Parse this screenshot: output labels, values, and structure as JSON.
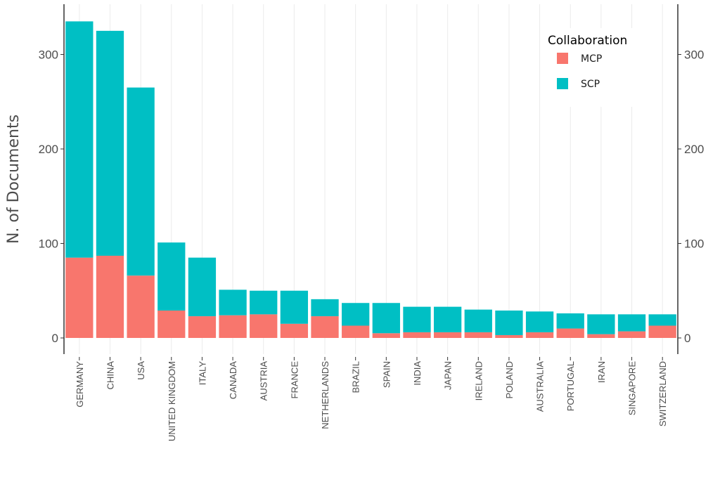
{
  "chart_data": {
    "type": "bar",
    "stacked": true,
    "title": "",
    "xlabel": "",
    "ylabel": "N. of Documents",
    "ylim": [
      0,
      350
    ],
    "yticks": [
      0,
      100,
      200,
      300
    ],
    "categories": [
      "GERMANY",
      "CHINA",
      "USA",
      "UNITED KINGDOM",
      "ITALY",
      "CANADA",
      "AUSTRIA",
      "FRANCE",
      "NETHERLANDS",
      "BRAZIL",
      "SPAIN",
      "INDIA",
      "JAPAN",
      "IRELAND",
      "POLAND",
      "AUSTRALIA",
      "PORTUGAL",
      "IRAN",
      "SINGAPORE",
      "SWITZERLAND"
    ],
    "series": [
      {
        "name": "MCP",
        "color": "#F8766D",
        "values": [
          85,
          87,
          66,
          29,
          23,
          24,
          25,
          15,
          23,
          13,
          5,
          6,
          6,
          6,
          3,
          6,
          10,
          4,
          7,
          13
        ]
      },
      {
        "name": "SCP",
        "color": "#00BFC4",
        "values": [
          250,
          238,
          199,
          72,
          62,
          27,
          25,
          35,
          18,
          24,
          32,
          27,
          27,
          24,
          26,
          22,
          16,
          21,
          18,
          12
        ]
      }
    ],
    "legend": {
      "title": "Collaboration",
      "position": "top-right"
    },
    "grid": true
  }
}
